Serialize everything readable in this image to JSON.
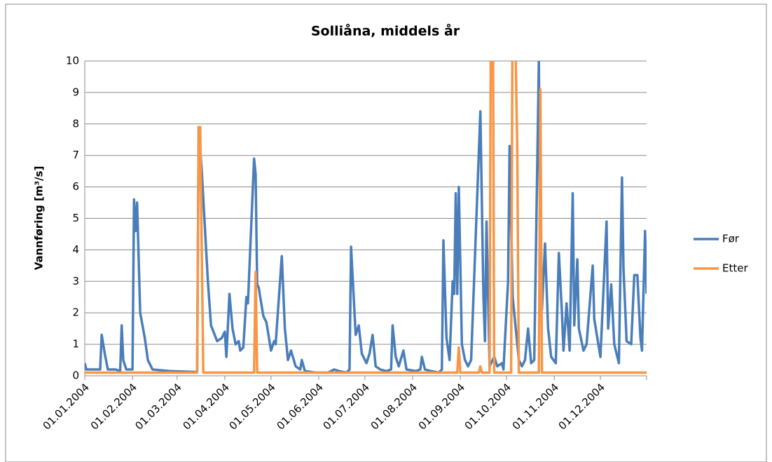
{
  "chart_data": {
    "type": "line",
    "title": "Solliåna, middels år",
    "ylabel": "Vannføring [m³/s]",
    "xlim": [
      "01.01.2004",
      "31.12.2004"
    ],
    "xticks": [
      "01.01.2004",
      "01.02.2004",
      "01.03.2004",
      "01.04.2004",
      "01.05.2004",
      "01.06.2004",
      "01.07.2004",
      "01.08.2004",
      "01.09.2004",
      "01.10.2004",
      "01.11.2004",
      "01.12.2004"
    ],
    "ylim": [
      0,
      10
    ],
    "yticks": [
      0,
      1,
      2,
      3,
      4,
      5,
      6,
      7,
      8,
      9,
      10
    ],
    "grid": true,
    "legend": "right",
    "series": [
      {
        "name": "Før",
        "color": "#4a7ebb",
        "x": [
          "01.01.2004",
          "02.01.2004",
          "11.01.2004",
          "12.01.2004",
          "14.01.2004",
          "16.01.2004",
          "21.01.2004",
          "24.01.2004",
          "25.01.2004",
          "26.01.2004",
          "28.01.2004",
          "01.02.2004",
          "02.02.2004",
          "03.02.2004",
          "04.02.2004",
          "06.02.2004",
          "09.02.2004",
          "11.02.2004",
          "14.02.2004",
          "25.02.2004",
          "14.03.2004",
          "15.03.2004",
          "17.03.2004",
          "21.03.2004",
          "23.03.2004",
          "27.03.2004",
          "30.03.2004",
          "01.04.2004",
          "02.04.2004",
          "04.04.2004",
          "06.04.2004",
          "08.04.2004",
          "10.04.2004",
          "11.04.2004",
          "13.04.2004",
          "15.04.2004",
          "16.04.2004",
          "20.04.2004",
          "21.04.2004",
          "22.04.2004",
          "23.04.2004",
          "26.04.2004",
          "28.04.2004",
          "01.05.2004",
          "03.05.2004",
          "04.05.2004",
          "08.05.2004",
          "10.05.2004",
          "12.05.2004",
          "14.05.2004",
          "17.05.2004",
          "20.05.2004",
          "21.05.2004",
          "23.05.2004",
          "30.05.2004",
          "07.06.2004",
          "11.06.2004",
          "14.06.2004",
          "19.06.2004",
          "21.06.2004",
          "22.06.2004",
          "25.06.2004",
          "27.06.2004",
          "29.06.2004",
          "02.07.2004",
          "04.07.2004",
          "06.07.2004",
          "08.07.2004",
          "11.07.2004",
          "15.07.2004",
          "18.07.2004",
          "19.07.2004",
          "21.07.2004",
          "23.07.2004",
          "26.07.2004",
          "28.07.2004",
          "03.08.2004",
          "06.08.2004",
          "07.08.2004",
          "09.08.2004",
          "13.08.2004",
          "18.08.2004",
          "20.08.2004",
          "21.08.2004",
          "23.08.2004",
          "25.08.2004",
          "27.08.2004",
          "28.08.2004",
          "29.08.2004",
          "30.08.2004",
          "31.08.2004",
          "02.09.2004",
          "04.09.2004",
          "06.09.2004",
          "08.09.2004",
          "14.09.2004",
          "16.09.2004",
          "17.09.2004",
          "18.09.2004",
          "20.09.2004",
          "23.09.2004",
          "25.09.2004",
          "28.09.2004",
          "29.09.2004",
          "02.10.2004",
          "03.10.2004",
          "05.10.2004",
          "07.10.2004",
          "09.10.2004",
          "11.10.2004",
          "13.10.2004",
          "15.10.2004",
          "17.10.2004",
          "19.10.2004",
          "22.10.2004",
          "23.10.2004",
          "24.10.2004",
          "26.10.2004",
          "28.10.2004",
          "30.10.2004",
          "02.11.2004",
          "04.11.2004",
          "06.11.2004",
          "07.11.2004",
          "09.11.2004",
          "11.11.2004",
          "13.11.2004",
          "14.11.2004",
          "16.11.2004",
          "17.11.2004",
          "20.11.2004",
          "22.11.2004",
          "26.11.2004",
          "27.11.2004",
          "30.11.2004",
          "01.12.2004",
          "05.12.2004",
          "06.12.2004",
          "08.12.2004",
          "10.12.2004",
          "13.12.2004",
          "15.12.2004",
          "16.12.2004",
          "18.12.2004",
          "21.12.2004",
          "23.12.2004",
          "25.12.2004",
          "27.12.2004",
          "28.12.2004",
          "30.12.2004",
          "31.12.2004"
        ],
        "values": [
          0.4,
          0.2,
          0.2,
          1.3,
          0.7,
          0.2,
          0.2,
          0.15,
          1.6,
          0.5,
          0.2,
          0.2,
          5.6,
          4.6,
          5.5,
          2.0,
          1.2,
          0.5,
          0.2,
          0.15,
          0.12,
          7.9,
          6.5,
          3.0,
          1.6,
          1.1,
          1.2,
          1.4,
          0.6,
          2.6,
          1.5,
          1.0,
          1.1,
          0.8,
          0.9,
          2.5,
          2.3,
          6.9,
          6.4,
          2.9,
          2.8,
          1.9,
          1.7,
          0.8,
          1.1,
          1.0,
          3.8,
          1.5,
          0.5,
          0.8,
          0.3,
          0.2,
          0.5,
          0.15,
          0.1,
          0.1,
          0.2,
          0.15,
          0.1,
          0.2,
          4.1,
          1.3,
          1.6,
          0.7,
          0.4,
          0.7,
          1.3,
          0.3,
          0.2,
          0.15,
          0.2,
          1.6,
          0.6,
          0.3,
          0.8,
          0.2,
          0.15,
          0.2,
          0.6,
          0.2,
          0.15,
          0.1,
          0.2,
          4.3,
          1.2,
          0.5,
          3.0,
          2.6,
          5.8,
          2.6,
          6.0,
          1.0,
          0.5,
          0.3,
          0.5,
          8.4,
          2.5,
          1.1,
          4.9,
          0.3,
          0.6,
          0.3,
          0.4,
          0.2,
          3.0,
          7.3,
          2.5,
          1.5,
          0.5,
          0.3,
          0.5,
          1.5,
          0.4,
          0.5,
          10,
          3.5,
          2.1,
          4.2,
          1.5,
          0.6,
          0.4,
          3.9,
          2.0,
          0.8,
          2.3,
          0.8,
          5.8,
          1.6,
          3.7,
          1.5,
          0.8,
          1.0,
          3.5,
          1.8,
          0.9,
          0.6,
          4.9,
          1.5,
          2.9,
          1.0,
          0.4,
          6.3,
          3.4,
          1.1,
          1.0,
          3.2,
          3.2,
          1.2,
          0.8,
          4.6,
          2.6
        ]
      },
      {
        "name": "Etter",
        "color": "#f79646",
        "x": [
          "01.01.2004",
          "14.03.2004",
          "15.03.2004",
          "16.03.2004",
          "18.03.2004",
          "20.04.2004",
          "21.04.2004",
          "22.04.2004",
          "30.08.2004",
          "31.08.2004",
          "01.09.2004",
          "13.09.2004",
          "14.09.2004",
          "15.09.2004",
          "20.09.2004",
          "21.09.2004",
          "22.09.2004",
          "23.09.2004",
          "04.10.2004",
          "05.10.2004",
          "06.10.2004",
          "08.10.2004",
          "09.10.2004",
          "22.10.2004",
          "23.10.2004",
          "24.10.2004",
          "31.12.2004"
        ],
        "values": [
          0.1,
          0.1,
          7.9,
          7.9,
          0.1,
          0.1,
          3.3,
          0.1,
          0.1,
          0.9,
          0.1,
          0.1,
          0.3,
          0.1,
          0.1,
          14,
          14,
          0.1,
          0.1,
          13,
          13,
          7.1,
          0.1,
          0.1,
          9.1,
          0.1,
          0.1
        ]
      }
    ]
  }
}
